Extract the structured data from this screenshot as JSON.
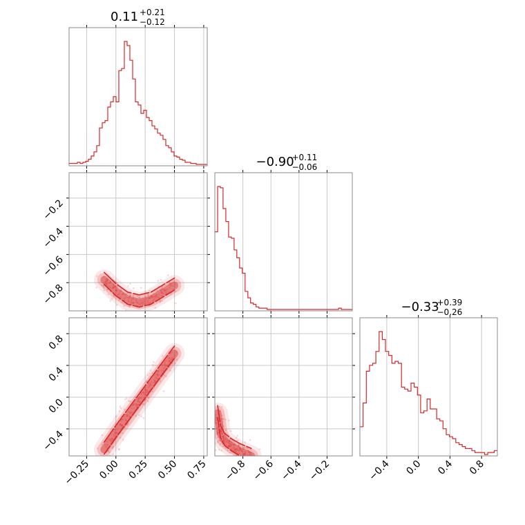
{
  "chart_data": {
    "type": "scatter",
    "subtype": "corner-plot",
    "color": "#d62728",
    "grid": true,
    "parameters": [
      {
        "index": 0,
        "median": 0.11,
        "title": {
          "main": "0.11",
          "plus": "+0.21",
          "minus": "−0.12"
        },
        "range": [
          -0.4,
          0.78
        ],
        "ticks": [
          -0.25,
          0.0,
          0.25,
          0.5,
          0.75
        ],
        "tick_labels": [
          "−0.25",
          "0.00",
          "0.25",
          "0.50",
          "0.75"
        ]
      },
      {
        "index": 1,
        "median": -0.9,
        "title": {
          "main": "−0.90",
          "plus": "+0.11",
          "minus": "−0.06"
        },
        "range": [
          -1.0,
          -0.02
        ],
        "ticks": [
          -0.8,
          -0.6,
          -0.4,
          -0.2
        ],
        "tick_labels": [
          "−0.8",
          "−0.6",
          "−0.4",
          "−0.2"
        ]
      },
      {
        "index": 2,
        "median": -0.33,
        "title": {
          "main": "−0.33",
          "plus": "+0.39",
          "minus": "−0.26"
        },
        "range": [
          -0.74,
          1.0
        ],
        "ticks": [
          -0.4,
          0.0,
          0.4,
          0.8
        ],
        "tick_labels": [
          "−0.4",
          "0.0",
          "0.4",
          "0.8"
        ]
      }
    ],
    "histograms": [
      {
        "param": 0,
        "bin_range": [
          -0.4,
          0.78
        ],
        "counts": [
          1,
          1,
          1,
          2,
          1,
          2,
          3,
          5,
          8,
          12,
          18,
          35,
          40,
          42,
          55,
          60,
          65,
          60,
          90,
          92,
          118,
          114,
          100,
          82,
          60,
          57,
          49,
          52,
          45,
          42,
          37,
          34,
          30,
          28,
          24,
          18,
          16,
          12,
          8,
          7,
          5,
          4,
          2,
          2,
          1,
          1,
          0,
          0,
          0,
          0
        ]
      },
      {
        "param": 1,
        "bin_range": [
          -1.0,
          -0.02
        ],
        "counts": [
          60,
          95,
          94,
          78,
          68,
          56,
          55,
          46,
          40,
          32,
          28,
          14,
          9,
          5,
          4,
          2,
          1,
          1,
          1,
          0,
          0,
          0,
          0,
          0,
          0,
          0,
          0,
          0,
          0,
          0,
          0,
          0,
          0,
          0,
          0,
          0,
          0,
          0,
          0,
          0,
          0,
          0,
          0,
          0,
          0,
          1,
          0,
          0,
          0,
          0
        ]
      },
      {
        "param": 2,
        "bin_range": [
          -0.74,
          1.0
        ],
        "counts": [
          14,
          26,
          42,
          45,
          46,
          52,
          62,
          58,
          52,
          50,
          46,
          47,
          46,
          34,
          33,
          32,
          36,
          34,
          30,
          21,
          22,
          28,
          23,
          23,
          18,
          17,
          13,
          10,
          9,
          8,
          6,
          5,
          4,
          3,
          3,
          2,
          1,
          1,
          1,
          0,
          1,
          1,
          2
        ]
      }
    ],
    "pairs": [
      {
        "x_param": 0,
        "y_param": 1,
        "trend": [
          [
            -0.1,
            -0.78
          ],
          [
            0.0,
            -0.86
          ],
          [
            0.1,
            -0.92
          ],
          [
            0.2,
            -0.94
          ],
          [
            0.3,
            -0.92
          ],
          [
            0.4,
            -0.87
          ],
          [
            0.5,
            -0.82
          ]
        ]
      },
      {
        "x_param": 0,
        "y_param": 2,
        "trend": [
          [
            -0.1,
            -0.66
          ],
          [
            0.0,
            -0.45
          ],
          [
            0.1,
            -0.25
          ],
          [
            0.2,
            -0.05
          ],
          [
            0.3,
            0.15
          ],
          [
            0.4,
            0.35
          ],
          [
            0.5,
            0.55
          ]
        ]
      },
      {
        "x_param": 1,
        "y_param": 2,
        "trend": [
          [
            -0.98,
            -0.2
          ],
          [
            -0.96,
            -0.45
          ],
          [
            -0.93,
            -0.55
          ],
          [
            -0.88,
            -0.62
          ],
          [
            -0.82,
            -0.68
          ],
          [
            -0.74,
            -0.74
          ]
        ]
      }
    ]
  }
}
